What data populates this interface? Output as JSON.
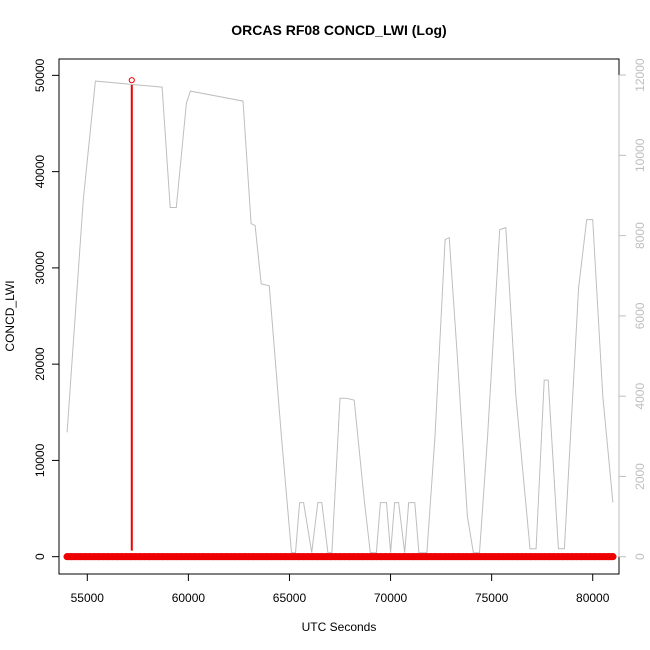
{
  "chart_data": {
    "type": "line",
    "title": "ORCAS RF08 CONCD_LWI (Log)",
    "xlabel": "UTC Seconds",
    "ylabel": "CONCD_LWI",
    "xlim": [
      53600,
      81300
    ],
    "ylim": [
      -1800,
      51700
    ],
    "xticks": [
      55000,
      60000,
      65000,
      70000,
      75000,
      80000
    ],
    "yticks": [
      0,
      10000,
      20000,
      30000,
      40000,
      50000
    ],
    "y2lim": [
      -430,
      12400
    ],
    "y2ticks": [
      0,
      2000,
      4000,
      6000,
      8000,
      10000,
      12000
    ],
    "grid": false,
    "colors": {
      "primary": "#ee0000",
      "secondary": "#bebebe",
      "axis": "#000000"
    },
    "series": [
      {
        "axis": "right",
        "style": "line",
        "x": [
          54000,
          54800,
          55400,
          58700,
          59100,
          59400,
          59900,
          60100,
          62700,
          63100,
          63300,
          63600,
          64000,
          64600,
          65100,
          65300,
          65500,
          65700,
          66100,
          66400,
          66600,
          66900,
          67100,
          67500,
          67800,
          68200,
          68700,
          69000,
          69300,
          69500,
          69800,
          70000,
          70200,
          70400,
          70700,
          70900,
          71200,
          71400,
          71800,
          72200,
          72700,
          72900,
          73300,
          73800,
          74100,
          74400,
          74800,
          75400,
          75700,
          76200,
          76900,
          77200,
          77600,
          77800,
          78300,
          78600,
          78900,
          79300,
          79700,
          80000,
          80500,
          81000
        ],
        "y": [
          3100,
          8900,
          11850,
          11700,
          8700,
          8700,
          11300,
          11600,
          11350,
          8300,
          8250,
          6800,
          6750,
          3000,
          100,
          100,
          1350,
          1350,
          100,
          1350,
          1350,
          100,
          100,
          3950,
          3950,
          3900,
          1400,
          100,
          100,
          1350,
          1350,
          100,
          1350,
          1350,
          100,
          1350,
          1350,
          100,
          100,
          3000,
          7900,
          7950,
          5000,
          1000,
          100,
          100,
          3000,
          8150,
          8200,
          4000,
          200,
          200,
          4400,
          4400,
          200,
          200,
          3000,
          6700,
          8400,
          8400,
          4000,
          1350
        ]
      },
      {
        "axis": "left",
        "style": "points",
        "x_range": [
          54000,
          81000
        ],
        "y_baseline": 0
      },
      {
        "axis": "left",
        "style": "spike",
        "x": [
          57200
        ],
        "y": [
          49000
        ],
        "outlier": {
          "x": 57200,
          "y": 49500
        }
      }
    ]
  }
}
